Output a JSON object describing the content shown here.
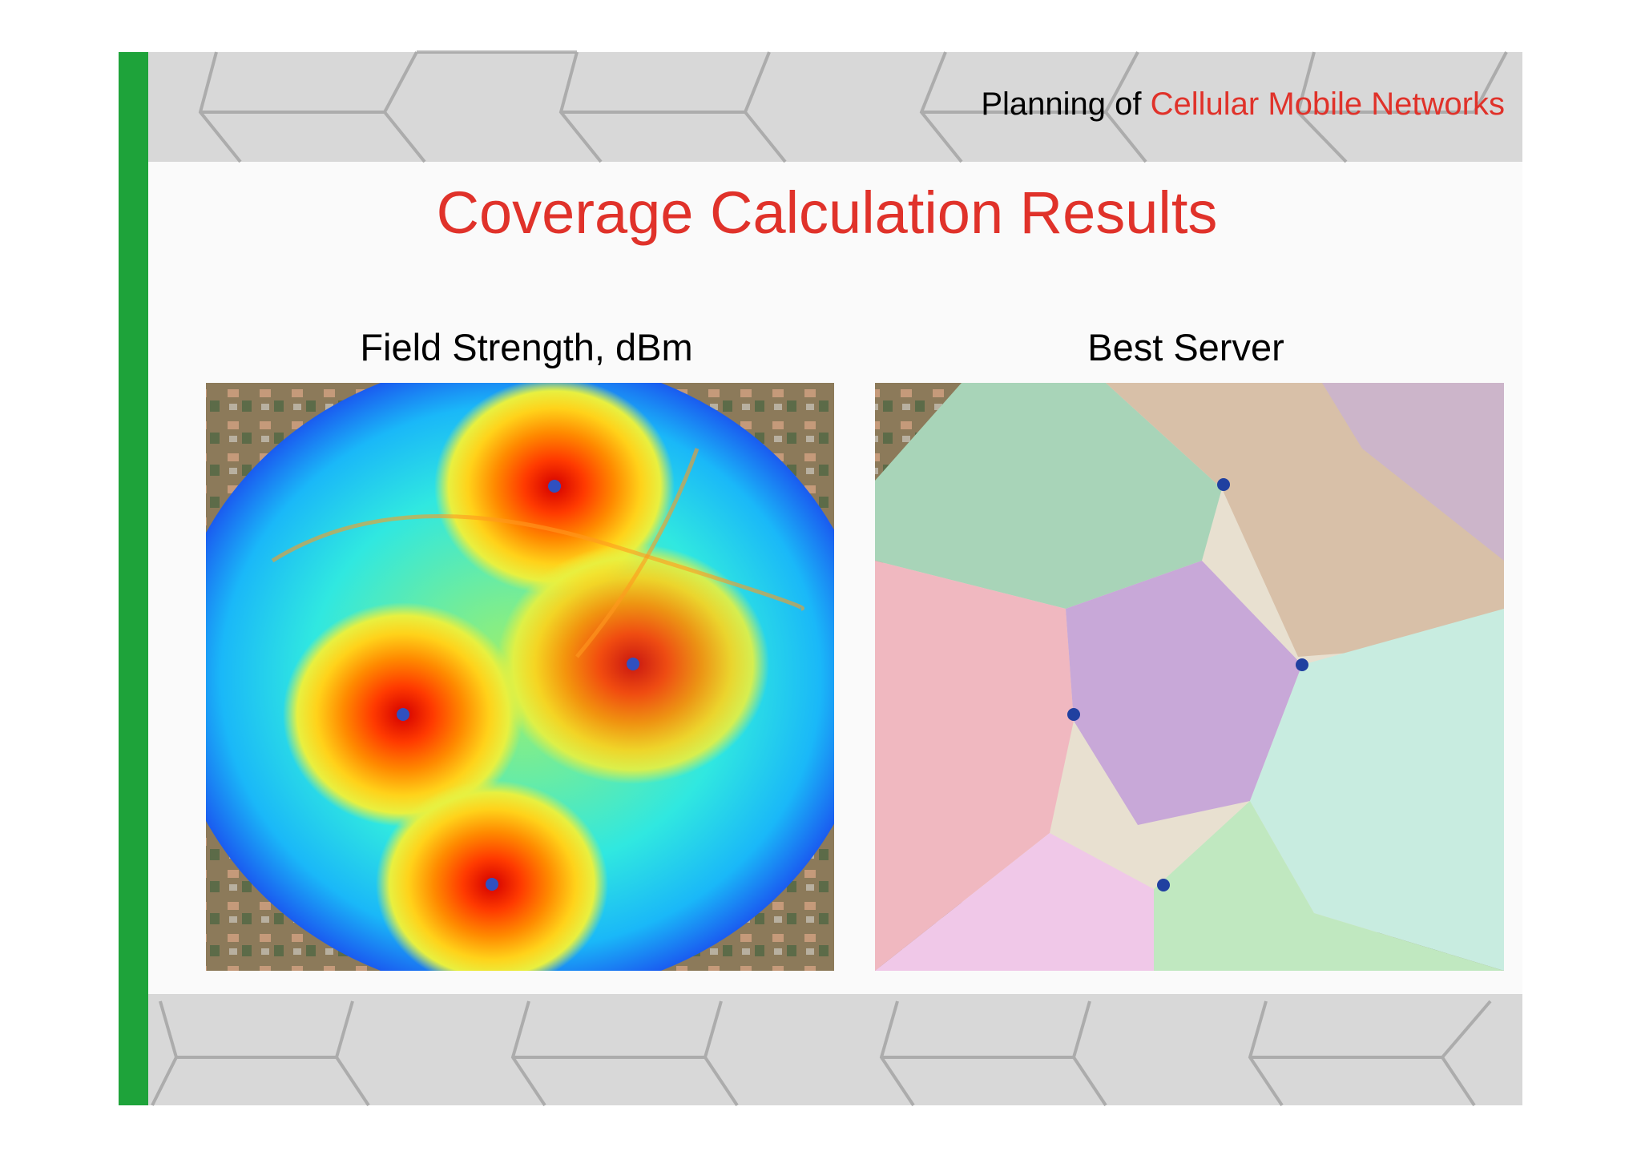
{
  "header": {
    "prefix": "Planning of",
    "highlight": "Cellular Mobile Networks"
  },
  "title": "Coverage Calculation Results",
  "panels": [
    {
      "caption": "Field Strength, dBm"
    },
    {
      "caption": "Best Server"
    }
  ]
}
